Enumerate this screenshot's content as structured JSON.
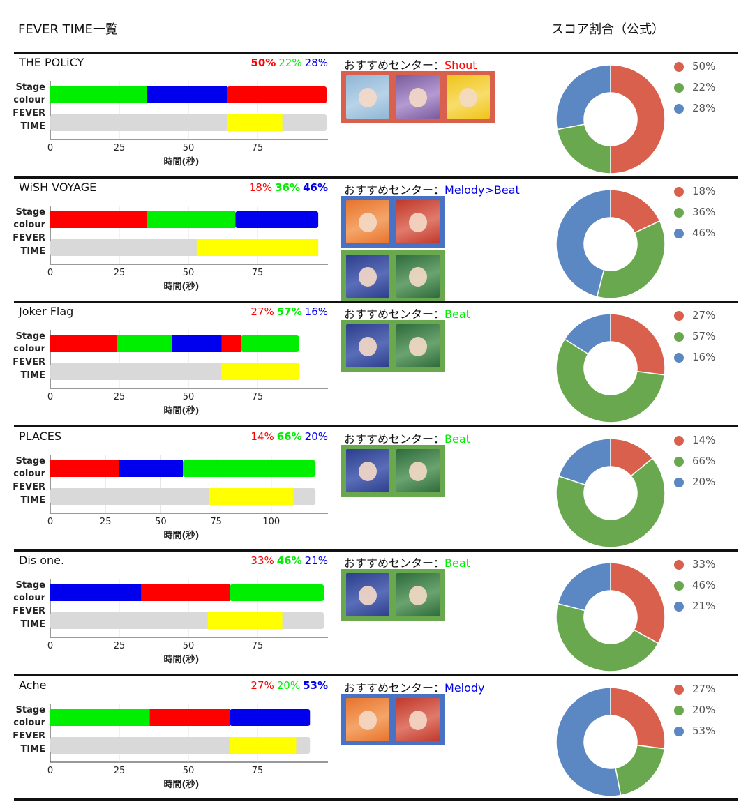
{
  "header": {
    "title": "FEVER TIME一覧",
    "score_title": "スコア割合（公式）"
  },
  "labels": {
    "stage": "Stage",
    "colour": "colour",
    "fever": "FEVER",
    "time": "TIME",
    "xlabel": "時間(秒)",
    "center_prefix": "おすすめセンター："
  },
  "colors": {
    "red": "#ff0000",
    "green": "#00ee00",
    "blue": "#0000ee",
    "yellow": "#ffff00",
    "grey": "#d9d9d9",
    "donut_red": "#d9604c",
    "donut_green": "#6aa84f",
    "donut_blue": "#5b87c2",
    "frame_red": "#d9604c",
    "frame_green": "#6aa84f",
    "frame_blue": "#4a72c4"
  },
  "songs": [
    {
      "name": "THE POLiCY",
      "pcts": [
        {
          "text": "50%",
          "color": "red",
          "bold": true
        },
        {
          "text": "22%",
          "color": "green",
          "bold": false
        },
        {
          "text": "28%",
          "color": "blue",
          "bold": false
        }
      ],
      "center": {
        "text": "Shout",
        "color": "red"
      },
      "thumb_groups": [
        {
          "frame": "frame_red",
          "thumbs": [
            "blue-bear-hood-character",
            "purple-hood-character",
            "yellow-hood-character"
          ]
        }
      ]
    },
    {
      "name": "WiSH VOYAGE",
      "pcts": [
        {
          "text": "18%",
          "color": "red",
          "bold": false
        },
        {
          "text": "36%",
          "color": "green",
          "bold": true
        },
        {
          "text": "46%",
          "color": "blue",
          "bold": true
        }
      ],
      "center": {
        "text": "Melody>Beat",
        "color": "blue"
      },
      "thumb_groups": [
        {
          "frame": "frame_blue",
          "thumbs": [
            "orange-hood-character",
            "red-hair-character"
          ]
        },
        {
          "frame": "frame_green",
          "thumbs": [
            "navy-hood-character",
            "green-hood-character"
          ]
        }
      ]
    },
    {
      "name": "Joker Flag",
      "pcts": [
        {
          "text": "27%",
          "color": "red",
          "bold": false
        },
        {
          "text": "57%",
          "color": "green",
          "bold": true
        },
        {
          "text": "16%",
          "color": "blue",
          "bold": false
        }
      ],
      "center": {
        "text": "Beat",
        "color": "green"
      },
      "thumb_groups": [
        {
          "frame": "frame_green",
          "thumbs": [
            "navy-hood-character",
            "green-hood-character"
          ]
        }
      ]
    },
    {
      "name": "PLACES",
      "pcts": [
        {
          "text": "14%",
          "color": "red",
          "bold": false
        },
        {
          "text": "66%",
          "color": "green",
          "bold": true
        },
        {
          "text": "20%",
          "color": "blue",
          "bold": false
        }
      ],
      "center": {
        "text": "Beat",
        "color": "green"
      },
      "thumb_groups": [
        {
          "frame": "frame_green",
          "thumbs": [
            "navy-hood-character",
            "green-hood-character"
          ]
        }
      ]
    },
    {
      "name": "Dis one.",
      "pcts": [
        {
          "text": "33%",
          "color": "red",
          "bold": false
        },
        {
          "text": "46%",
          "color": "green",
          "bold": true
        },
        {
          "text": "21%",
          "color": "blue",
          "bold": false
        }
      ],
      "center": {
        "text": "Beat",
        "color": "green"
      },
      "thumb_groups": [
        {
          "frame": "frame_green",
          "thumbs": [
            "navy-hood-character",
            "green-hood-character"
          ]
        }
      ]
    },
    {
      "name": "Ache",
      "pcts": [
        {
          "text": "27%",
          "color": "red",
          "bold": false
        },
        {
          "text": "20%",
          "color": "green",
          "bold": false
        },
        {
          "text": "53%",
          "color": "blue",
          "bold": true
        }
      ],
      "center": {
        "text": "Melody",
        "color": "blue"
      },
      "thumb_groups": [
        {
          "frame": "frame_blue",
          "thumbs": [
            "orange-hood-character",
            "red-hair-character"
          ]
        }
      ]
    }
  ],
  "chart_data": [
    {
      "type": "bar",
      "title": "THE POLiCY",
      "xlabel": "時間(秒)",
      "xlim": [
        0,
        100
      ],
      "xticks": [
        0,
        25,
        50,
        75
      ],
      "stage_colour": [
        {
          "color": "green",
          "start": 0,
          "end": 35
        },
        {
          "color": "blue",
          "start": 35,
          "end": 64
        },
        {
          "color": "red",
          "start": 64,
          "end": 100
        }
      ],
      "fever_time": {
        "start": 64,
        "end": 84,
        "song_end": 100
      },
      "score_share": [
        {
          "label": "50%",
          "value": 50,
          "color": "red"
        },
        {
          "label": "22%",
          "value": 22,
          "color": "green"
        },
        {
          "label": "28%",
          "value": 28,
          "color": "blue"
        }
      ]
    },
    {
      "type": "bar",
      "title": "WiSH VOYAGE",
      "xlabel": "時間(秒)",
      "xlim": [
        0,
        100
      ],
      "xticks": [
        0,
        25,
        50,
        75
      ],
      "stage_colour": [
        {
          "color": "red",
          "start": 0,
          "end": 35
        },
        {
          "color": "green",
          "start": 35,
          "end": 67
        },
        {
          "color": "blue",
          "start": 67,
          "end": 97
        }
      ],
      "fever_time": {
        "start": 53,
        "end": 97,
        "song_end": 97
      },
      "score_share": [
        {
          "label": "18%",
          "value": 18,
          "color": "red"
        },
        {
          "label": "36%",
          "value": 36,
          "color": "green"
        },
        {
          "label": "46%",
          "value": 46,
          "color": "blue"
        }
      ]
    },
    {
      "type": "bar",
      "title": "Joker Flag",
      "xlabel": "時間(秒)",
      "xlim": [
        0,
        100
      ],
      "xticks": [
        0,
        25,
        50,
        75
      ],
      "stage_colour": [
        {
          "color": "red",
          "start": 0,
          "end": 24
        },
        {
          "color": "green",
          "start": 24,
          "end": 44
        },
        {
          "color": "blue",
          "start": 44,
          "end": 62
        },
        {
          "color": "red",
          "start": 62,
          "end": 69
        },
        {
          "color": "green",
          "start": 69,
          "end": 90
        }
      ],
      "fever_time": {
        "start": 62,
        "end": 90,
        "song_end": 90
      },
      "score_share": [
        {
          "label": "27%",
          "value": 27,
          "color": "red"
        },
        {
          "label": "57%",
          "value": 57,
          "color": "green"
        },
        {
          "label": "16%",
          "value": 16,
          "color": "blue"
        }
      ]
    },
    {
      "type": "bar",
      "title": "PLACES",
      "xlabel": "時間(秒)",
      "xlim": [
        0,
        125
      ],
      "xticks": [
        0,
        25,
        50,
        75,
        100
      ],
      "stage_colour": [
        {
          "color": "red",
          "start": 0,
          "end": 31
        },
        {
          "color": "blue",
          "start": 31,
          "end": 60
        },
        {
          "color": "green",
          "start": 60,
          "end": 120
        }
      ],
      "fever_time": {
        "start": 72,
        "end": 110,
        "song_end": 120
      },
      "score_share": [
        {
          "label": "14%",
          "value": 14,
          "color": "red"
        },
        {
          "label": "66%",
          "value": 66,
          "color": "green"
        },
        {
          "label": "20%",
          "value": 20,
          "color": "blue"
        }
      ]
    },
    {
      "type": "bar",
      "title": "Dis one.",
      "xlabel": "時間(秒)",
      "xlim": [
        0,
        100
      ],
      "xticks": [
        0,
        25,
        50,
        75
      ],
      "stage_colour": [
        {
          "color": "blue",
          "start": 0,
          "end": 33
        },
        {
          "color": "red",
          "start": 33,
          "end": 65
        },
        {
          "color": "green",
          "start": 65,
          "end": 99
        }
      ],
      "fever_time": {
        "start": 57,
        "end": 84,
        "song_end": 99
      },
      "score_share": [
        {
          "label": "33%",
          "value": 33,
          "color": "red"
        },
        {
          "label": "46%",
          "value": 46,
          "color": "green"
        },
        {
          "label": "21%",
          "value": 21,
          "color": "blue"
        }
      ]
    },
    {
      "type": "bar",
      "title": "Ache",
      "xlabel": "時間(秒)",
      "xlim": [
        0,
        100
      ],
      "xticks": [
        0,
        25,
        50,
        75
      ],
      "stage_colour": [
        {
          "color": "green",
          "start": 0,
          "end": 36
        },
        {
          "color": "red",
          "start": 36,
          "end": 65
        },
        {
          "color": "blue",
          "start": 65,
          "end": 94
        }
      ],
      "fever_time": {
        "start": 65,
        "end": 89,
        "song_end": 94
      },
      "score_share": [
        {
          "label": "27%",
          "value": 27,
          "color": "red"
        },
        {
          "label": "20%",
          "value": 20,
          "color": "green"
        },
        {
          "label": "53%",
          "value": 53,
          "color": "blue"
        }
      ]
    }
  ]
}
